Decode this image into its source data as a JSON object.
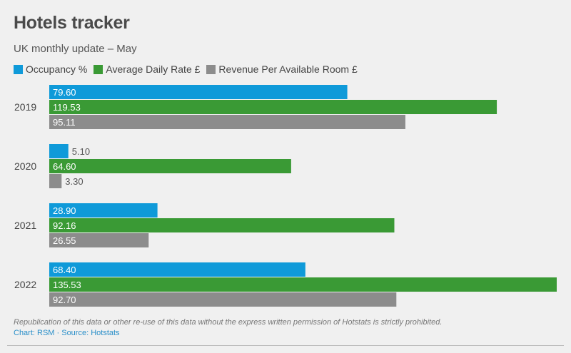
{
  "header": {
    "title": "Hotels tracker",
    "subtitle": "UK monthly update – May"
  },
  "chart_data": {
    "type": "bar",
    "orientation": "horizontal",
    "title": "Hotels tracker",
    "subtitle": "UK monthly update – May",
    "categories": [
      "2019",
      "2020",
      "2021",
      "2022"
    ],
    "series": [
      {
        "name": "Occupancy %",
        "color": "#0f9ad9",
        "values": [
          79.6,
          5.1,
          28.9,
          68.4
        ],
        "labels": [
          "79.60",
          "5.10",
          "28.90",
          "68.40"
        ]
      },
      {
        "name": "Average Daily Rate £",
        "color": "#3a9a35",
        "values": [
          119.53,
          64.6,
          92.16,
          135.53
        ],
        "labels": [
          "119.53",
          "64.60",
          "92.16",
          "135.53"
        ]
      },
      {
        "name": "Revenue Per Available Room £",
        "color": "#8c8c8c",
        "values": [
          95.11,
          3.3,
          26.55,
          92.7
        ],
        "labels": [
          "95.11",
          "3.30",
          "26.55",
          "92.70"
        ]
      }
    ],
    "xlim": [
      0,
      135.53
    ],
    "grid": false,
    "legend": "top-left"
  },
  "footer": {
    "note": "Republication of this data or other re-use of this data without the express written permission of Hotstats is strictly prohibited.",
    "source": "Chart: RSM · Source: Hotstats"
  }
}
